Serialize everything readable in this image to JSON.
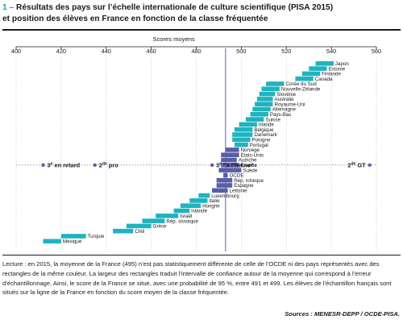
{
  "figure": {
    "number": "1 –",
    "title_line1": "Résultats des pays sur l’échelle internationale de culture scientifique (PISA 2015)",
    "title_line2": "et position des élèves en France en fonction de la classe fréquentée"
  },
  "chart_data": {
    "type": "bar",
    "title": "",
    "xlabel": "Scores moyens",
    "ylabel": "",
    "xlim": [
      400,
      560
    ],
    "x_ticks": [
      400,
      420,
      440,
      460,
      480,
      500,
      520,
      540,
      560
    ],
    "grid": true,
    "colors": {
      "country": "#1fb3bf",
      "france_group": "#5a5da8",
      "marker": "#5a5da8",
      "average_line": "#5a5da8"
    },
    "oecd_average": 493,
    "countries": [
      {
        "name": "Japon",
        "low": 533,
        "high": 541,
        "group": "other",
        "label_side": "right"
      },
      {
        "name": "Estonie",
        "low": 530,
        "high": 538,
        "group": "other",
        "label_side": "right"
      },
      {
        "name": "Finlande",
        "low": 527,
        "high": 535,
        "group": "other",
        "label_side": "right"
      },
      {
        "name": "Canada",
        "low": 524,
        "high": 532,
        "group": "other",
        "label_side": "right"
      },
      {
        "name": "Corée du Sud",
        "low": 511,
        "high": 519,
        "group": "other",
        "label_side": "right"
      },
      {
        "name": "Nouvelle-Zélande",
        "low": 509,
        "high": 517,
        "group": "other",
        "label_side": "right"
      },
      {
        "name": "Slovénie",
        "low": 508,
        "high": 515,
        "group": "other",
        "label_side": "right"
      },
      {
        "name": "Australie",
        "low": 507,
        "high": 514,
        "group": "other",
        "label_side": "right"
      },
      {
        "name": "Royaume-Uni",
        "low": 506,
        "high": 514,
        "group": "other",
        "label_side": "right"
      },
      {
        "name": "Allemagne",
        "low": 505,
        "high": 513,
        "group": "other",
        "label_side": "right"
      },
      {
        "name": "Pays-Bas",
        "low": 504,
        "high": 512,
        "group": "other",
        "label_side": "right"
      },
      {
        "name": "Suisse",
        "low": 502,
        "high": 510,
        "group": "other",
        "label_side": "right"
      },
      {
        "name": "Irlande",
        "low": 499,
        "high": 507,
        "group": "other",
        "label_side": "right"
      },
      {
        "name": "Belgique",
        "low": 497,
        "high": 505,
        "group": "other",
        "label_side": "right"
      },
      {
        "name": "Danemark",
        "low": 496,
        "high": 505,
        "group": "other",
        "label_side": "right"
      },
      {
        "name": "Pologne",
        "low": 496,
        "high": 504,
        "group": "other",
        "label_side": "right"
      },
      {
        "name": "Portugal",
        "low": 497,
        "high": 503,
        "group": "other",
        "label_side": "right"
      },
      {
        "name": "Norvège",
        "low": 493,
        "high": 499,
        "group": "france_group",
        "label_side": "right"
      },
      {
        "name": "États-Unis",
        "low": 491,
        "high": 499,
        "group": "france_group",
        "label_side": "right"
      },
      {
        "name": "Autriche",
        "low": 491,
        "high": 498,
        "group": "france_group",
        "label_side": "right"
      },
      {
        "name": "France",
        "low": 491,
        "high": 499,
        "group": "france_group",
        "label_side": "right",
        "bold": true
      },
      {
        "name": "Suède",
        "low": 490,
        "high": 500,
        "group": "france_group",
        "label_side": "right"
      },
      {
        "name": "OCDE",
        "low": 492,
        "high": 494,
        "group": "france_group",
        "label_side": "right"
      },
      {
        "name": "Rép. tchèque",
        "low": 489,
        "high": 496,
        "group": "france_group",
        "label_side": "right"
      },
      {
        "name": "Espagne",
        "low": 489,
        "high": 496,
        "group": "france_group",
        "label_side": "right"
      },
      {
        "name": "Lettonie",
        "low": 487,
        "high": 494,
        "group": "france_group",
        "label_side": "right"
      },
      {
        "name": "Luxembourg",
        "low": 481,
        "high": 486,
        "group": "other",
        "label_side": "right"
      },
      {
        "name": "Italie",
        "low": 477,
        "high": 485,
        "group": "other",
        "label_side": "right"
      },
      {
        "name": "Hongrie",
        "low": 473,
        "high": 482,
        "group": "other",
        "label_side": "right"
      },
      {
        "name": "Islande",
        "low": 470,
        "high": 477,
        "group": "other",
        "label_side": "right"
      },
      {
        "name": "Israël",
        "low": 462,
        "high": 472,
        "group": "other",
        "label_side": "right"
      },
      {
        "name": "Rép. slovaque",
        "low": 456,
        "high": 466,
        "group": "other",
        "label_side": "right"
      },
      {
        "name": "Grèce",
        "low": 449,
        "high": 460,
        "group": "other",
        "label_side": "right"
      },
      {
        "name": "Chili",
        "low": 443,
        "high": 452,
        "group": "other",
        "label_side": "right"
      },
      {
        "name": "Turquie",
        "low": 420,
        "high": 431,
        "group": "other",
        "label_side": "right"
      },
      {
        "name": "Mexique",
        "low": 412,
        "high": 420,
        "group": "other",
        "label_side": "right"
      }
    ],
    "france_positions": [
      {
        "label_main": "3",
        "label_sup": "e",
        "label_rest": " en retard",
        "score": 412
      },
      {
        "label_main": "2",
        "label_sup": "de",
        "label_rest": " pro",
        "score": 435
      },
      {
        "label_main": "3",
        "label_sup": "e",
        "label_rest": " “à l’heure”",
        "score": 487
      },
      {
        "label_main": "2",
        "label_sup": "de",
        "label_rest": " GT",
        "score": 557
      }
    ]
  },
  "note": {
    "text": "Lecture : en 2015, la moyenne de la France (495) n’est pas statistiquement différente de celle de l’OCDE ni des pays représentés avec des rectangles de la même couleur. La largeur des rectangles traduit l’intervalle de confiance autour de la moyenne qui correspond à l’erreur d’échantillonnage. Ainsi, le score de la France se situe, avec une probabilité de 95 %, entre 491 et 499. Les élèves de l’échantillon français sont situés sur la ligne de la France en fonction du score moyen de la classe fréquentée.",
    "sources": "Sources : MENESR-DEPP / OCDE-PISA."
  }
}
